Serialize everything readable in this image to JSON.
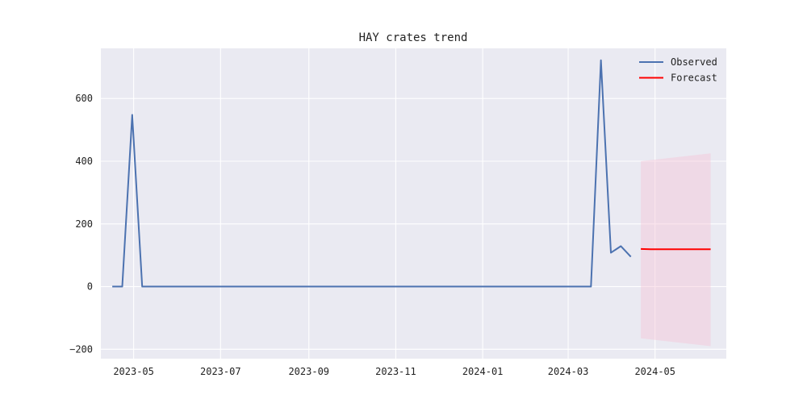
{
  "chart_data": {
    "type": "line",
    "title": "HAY crates trend",
    "xlabel": "",
    "ylabel": "",
    "x_range": [
      "2023-04-08",
      "2024-06-20"
    ],
    "ylim": [
      -230,
      760
    ],
    "x_ticks": [
      {
        "date": "2023-05-01",
        "label": "2023-05"
      },
      {
        "date": "2023-07-01",
        "label": "2023-07"
      },
      {
        "date": "2023-09-01",
        "label": "2023-09"
      },
      {
        "date": "2023-11-01",
        "label": "2023-11"
      },
      {
        "date": "2024-01-01",
        "label": "2024-01"
      },
      {
        "date": "2024-03-01",
        "label": "2024-03"
      },
      {
        "date": "2024-05-01",
        "label": "2024-05"
      }
    ],
    "y_ticks": [
      {
        "value": -200,
        "label": "−200"
      },
      {
        "value": 0,
        "label": "0"
      },
      {
        "value": 200,
        "label": "200"
      },
      {
        "value": 400,
        "label": "400"
      },
      {
        "value": 600,
        "label": "600"
      }
    ],
    "grid": true,
    "legend_position": "top-right",
    "colors": {
      "background": "#eaeaf2",
      "grid": "#ffffff",
      "observed": "#4c72b0",
      "forecast": "#ff0000",
      "band": "#f7c6d6"
    },
    "series": [
      {
        "name": "Observed",
        "kind": "line",
        "points": [
          {
            "x": "2023-04-16",
            "y": 0
          },
          {
            "x": "2023-04-23",
            "y": 0
          },
          {
            "x": "2023-04-30",
            "y": 548
          },
          {
            "x": "2023-05-07",
            "y": 0
          },
          {
            "x": "2024-03-17",
            "y": 0
          },
          {
            "x": "2024-03-24",
            "y": 722
          },
          {
            "x": "2024-03-31",
            "y": 108
          },
          {
            "x": "2024-04-07",
            "y": 129
          },
          {
            "x": "2024-04-14",
            "y": 95
          }
        ]
      },
      {
        "name": "Forecast",
        "kind": "line",
        "points": [
          {
            "x": "2024-04-21",
            "y": 120
          },
          {
            "x": "2024-04-28",
            "y": 119
          },
          {
            "x": "2024-05-05",
            "y": 119
          },
          {
            "x": "2024-05-12",
            "y": 119
          },
          {
            "x": "2024-05-19",
            "y": 119
          },
          {
            "x": "2024-05-26",
            "y": 119
          },
          {
            "x": "2024-06-02",
            "y": 119
          },
          {
            "x": "2024-06-09",
            "y": 119
          }
        ]
      }
    ],
    "confidence_band": {
      "points": [
        {
          "x": "2024-04-21",
          "low": -165,
          "high": 400
        },
        {
          "x": "2024-06-09",
          "low": -190,
          "high": 425
        }
      ]
    }
  }
}
